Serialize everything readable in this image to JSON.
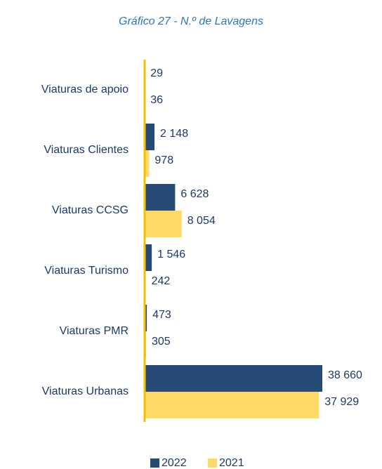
{
  "chart_data": {
    "type": "barh",
    "title": "Gráfico 27 - N.º de Lavagens",
    "categories": [
      "Viaturas de apoio",
      "Viaturas Clientes",
      "Viaturas CCSG",
      "Viaturas Turismo",
      "Viaturas PMR",
      "Viaturas Urbanas"
    ],
    "series": [
      {
        "name": "2022",
        "color": "#264b77",
        "values": [
          29,
          2148,
          6628,
          1546,
          473,
          38660
        ],
        "value_labels": [
          "29",
          "2 148",
          "6 628",
          "1 546",
          "473",
          "38 660"
        ]
      },
      {
        "name": "2021",
        "color": "#ffd966",
        "values": [
          36,
          978,
          8054,
          242,
          305,
          37929
        ],
        "value_labels": [
          "36",
          "978",
          "8 054",
          "242",
          "305",
          "37 929"
        ]
      }
    ],
    "legend": "bottom"
  }
}
